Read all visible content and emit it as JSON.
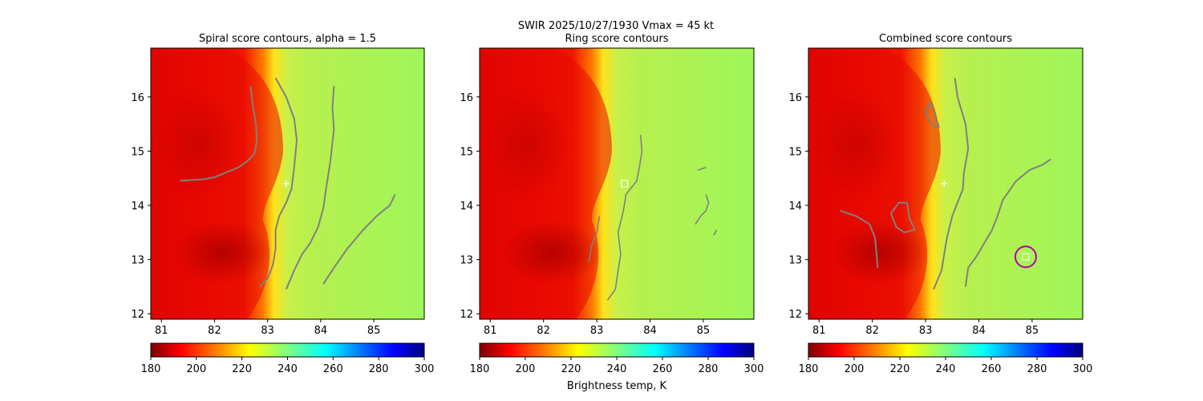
{
  "suptitle_line1": "SWIR  2025/10/27/1930    Vmax = 45 kt",
  "colorbar_label": "Brightness temp, K",
  "colorbar_ticks": [
    "180",
    "200",
    "220",
    "240",
    "260",
    "280",
    "300"
  ],
  "colorbar_range": [
    180,
    300
  ],
  "colormap": [
    "#7f0000",
    "#ff0000",
    "#ff7f00",
    "#ffff00",
    "#7fff7f",
    "#00ffff",
    "#007fff",
    "#0000ff",
    "#00007f"
  ],
  "contour_color": "#808080",
  "marker_color": "#ffffff",
  "circle_color": "#b000b0",
  "chart_data": [
    {
      "type": "heatmap",
      "title": "Spiral score contours, alpha =  1.5",
      "xlim": [
        80.8,
        85.95
      ],
      "ylim": [
        11.9,
        16.9
      ],
      "xticks": [
        "81",
        "82",
        "83",
        "84",
        "85"
      ],
      "yticks": [
        "12",
        "13",
        "14",
        "15",
        "16"
      ],
      "center_marker": {
        "x": 83.35,
        "y": 14.4
      },
      "contours": [
        [
          [
            81.35,
            14.45
          ],
          [
            81.6,
            14.47
          ],
          [
            81.8,
            14.48
          ],
          [
            82.0,
            14.52
          ],
          [
            82.2,
            14.6
          ],
          [
            82.45,
            14.7
          ],
          [
            82.6,
            14.8
          ],
          [
            82.75,
            14.95
          ],
          [
            82.8,
            15.2
          ],
          [
            82.78,
            15.5
          ],
          [
            82.72,
            15.85
          ],
          [
            82.68,
            16.2
          ]
        ],
        [
          [
            82.85,
            12.5
          ],
          [
            83.0,
            12.65
          ],
          [
            83.1,
            12.9
          ],
          [
            83.15,
            13.2
          ],
          [
            83.15,
            13.55
          ],
          [
            83.22,
            13.8
          ],
          [
            83.35,
            14.05
          ],
          [
            83.45,
            14.3
          ],
          [
            83.5,
            14.7
          ],
          [
            83.55,
            15.2
          ],
          [
            83.5,
            15.6
          ],
          [
            83.35,
            16.0
          ],
          [
            83.15,
            16.35
          ]
        ],
        [
          [
            83.35,
            12.45
          ],
          [
            83.5,
            12.8
          ],
          [
            83.65,
            13.1
          ],
          [
            83.8,
            13.3
          ],
          [
            83.95,
            13.6
          ],
          [
            84.05,
            13.95
          ],
          [
            84.1,
            14.3
          ],
          [
            84.18,
            14.8
          ],
          [
            84.25,
            15.4
          ],
          [
            84.22,
            15.8
          ],
          [
            84.25,
            16.2
          ]
        ],
        [
          [
            84.05,
            12.55
          ],
          [
            84.25,
            12.85
          ],
          [
            84.5,
            13.2
          ],
          [
            84.8,
            13.55
          ],
          [
            85.05,
            13.8
          ],
          [
            85.3,
            14.0
          ],
          [
            85.4,
            14.2
          ]
        ]
      ]
    },
    {
      "type": "heatmap",
      "title": "Ring score contours",
      "xlim": [
        80.8,
        85.95
      ],
      "ylim": [
        11.9,
        16.9
      ],
      "xticks": [
        "81",
        "82",
        "83",
        "84",
        "85"
      ],
      "yticks": [
        "12",
        "13",
        "14",
        "15",
        "16"
      ],
      "center_marker": {
        "x": 83.52,
        "y": 14.4
      },
      "contours": [
        [
          [
            83.2,
            12.25
          ],
          [
            83.35,
            12.45
          ],
          [
            83.4,
            12.8
          ],
          [
            83.45,
            13.1
          ],
          [
            83.4,
            13.5
          ],
          [
            83.5,
            13.9
          ],
          [
            83.55,
            14.2
          ],
          [
            83.75,
            14.45
          ],
          [
            83.8,
            14.7
          ],
          [
            83.85,
            15.0
          ],
          [
            83.82,
            15.3
          ]
        ],
        [
          [
            82.85,
            12.95
          ],
          [
            82.9,
            13.25
          ],
          [
            83.0,
            13.5
          ],
          [
            83.05,
            13.8
          ]
        ],
        [
          [
            84.85,
            13.65
          ],
          [
            84.95,
            13.8
          ],
          [
            85.05,
            13.9
          ],
          [
            85.1,
            14.05
          ],
          [
            85.05,
            14.2
          ]
        ],
        [
          [
            84.9,
            14.65
          ],
          [
            85.05,
            14.7
          ]
        ],
        [
          [
            85.2,
            13.45
          ],
          [
            85.25,
            13.55
          ]
        ]
      ]
    },
    {
      "type": "heatmap",
      "title": "Combined score contours",
      "xlim": [
        80.8,
        85.95
      ],
      "ylim": [
        11.9,
        16.9
      ],
      "xticks": [
        "81",
        "82",
        "83",
        "84",
        "85"
      ],
      "yticks": [
        "12",
        "13",
        "14",
        "15",
        "16"
      ],
      "center_marker": {
        "x": 83.35,
        "y": 14.4
      },
      "circle_marker": {
        "x": 84.88,
        "y": 13.05
      },
      "contours": [
        [
          [
            81.4,
            13.9
          ],
          [
            81.7,
            13.8
          ],
          [
            81.95,
            13.65
          ],
          [
            82.05,
            13.4
          ],
          [
            82.08,
            13.1
          ],
          [
            82.1,
            12.85
          ]
        ],
        [
          [
            82.35,
            13.85
          ],
          [
            82.5,
            14.05
          ],
          [
            82.65,
            14.05
          ],
          [
            82.7,
            13.75
          ],
          [
            82.8,
            13.55
          ],
          [
            82.6,
            13.5
          ],
          [
            82.45,
            13.6
          ],
          [
            82.35,
            13.85
          ]
        ],
        [
          [
            83.0,
            15.75
          ],
          [
            83.1,
            15.9
          ],
          [
            83.2,
            15.6
          ],
          [
            83.25,
            15.45
          ],
          [
            83.15,
            15.45
          ],
          [
            83.05,
            15.6
          ],
          [
            83.0,
            15.75
          ]
        ],
        [
          [
            83.15,
            12.45
          ],
          [
            83.3,
            12.8
          ],
          [
            83.35,
            13.1
          ],
          [
            83.4,
            13.4
          ],
          [
            83.5,
            13.8
          ],
          [
            83.6,
            14.05
          ],
          [
            83.7,
            14.3
          ],
          [
            83.72,
            14.6
          ],
          [
            83.8,
            15.05
          ],
          [
            83.75,
            15.5
          ],
          [
            83.6,
            16.0
          ],
          [
            83.55,
            16.35
          ]
        ],
        [
          [
            83.75,
            12.5
          ],
          [
            83.8,
            12.85
          ],
          [
            83.95,
            13.05
          ],
          [
            84.1,
            13.3
          ],
          [
            84.25,
            13.55
          ],
          [
            84.35,
            13.8
          ],
          [
            84.45,
            14.1
          ],
          [
            84.7,
            14.45
          ],
          [
            84.95,
            14.65
          ],
          [
            85.2,
            14.75
          ],
          [
            85.35,
            14.85
          ]
        ]
      ]
    }
  ]
}
